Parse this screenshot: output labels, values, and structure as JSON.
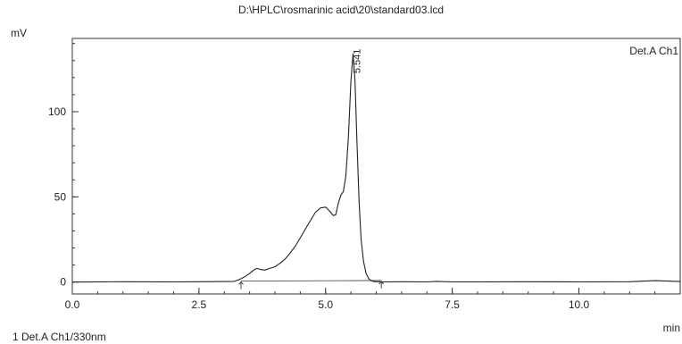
{
  "chart_data": {
    "type": "line",
    "title": "D:\\HPLC\\rosmarinic acid\\20\\standard03.lcd",
    "xlabel": "min",
    "ylabel": "mV",
    "xlim": [
      0.0,
      12.0
    ],
    "ylim": [
      -7,
      143
    ],
    "x_ticks": [
      0.0,
      2.5,
      5.0,
      7.5,
      10.0
    ],
    "x_tick_labels": [
      "0.0",
      "2.5",
      "5.0",
      "7.5",
      "10.0"
    ],
    "y_ticks": [
      0,
      50,
      100
    ],
    "y_tick_labels": [
      "0",
      "50",
      "100"
    ],
    "grid": false,
    "channel_label": "Det.A Ch1",
    "footer_legend": "1  Det.A Ch1/330nm",
    "series": [
      {
        "name": "Det.A Ch1",
        "color": "#222222",
        "x": [
          0.0,
          1.0,
          2.0,
          2.5,
          3.0,
          3.2,
          3.3,
          3.4,
          3.5,
          3.6,
          3.65,
          3.7,
          3.8,
          3.9,
          4.0,
          4.1,
          4.2,
          4.3,
          4.4,
          4.5,
          4.6,
          4.7,
          4.8,
          4.9,
          5.0,
          5.1,
          5.15,
          5.2,
          5.25,
          5.3,
          5.35,
          5.4,
          5.45,
          5.5,
          5.541,
          5.58,
          5.62,
          5.66,
          5.7,
          5.75,
          5.8,
          5.85,
          5.9,
          5.95,
          6.0,
          6.1,
          6.2,
          6.5,
          7.0,
          7.2,
          7.5,
          8.0,
          9.0,
          10.0,
          11.0,
          11.5,
          12.0
        ],
        "y": [
          0,
          0.2,
          0.1,
          0.2,
          0.3,
          0.4,
          1.5,
          3,
          5,
          7.5,
          8,
          7.5,
          7,
          8,
          9,
          11,
          13.5,
          17,
          21,
          26,
          31,
          36,
          41,
          43.5,
          44,
          41,
          39,
          39.5,
          46,
          51,
          53,
          62,
          85,
          118,
          134,
          118,
          82,
          48,
          25,
          12,
          5,
          2,
          0.8,
          0.3,
          0.2,
          0.1,
          0.1,
          0.2,
          0.1,
          0.4,
          0.1,
          0.1,
          0.2,
          0.1,
          0.2,
          0.8,
          0.3
        ]
      }
    ],
    "baseline": {
      "x": [
        3.33,
        6.1
      ],
      "y": [
        0.6,
        0.9
      ]
    },
    "integration_markers": [
      {
        "x": 3.33,
        "y": 0.6
      },
      {
        "x": 6.1,
        "y": 0.9
      }
    ],
    "peak_labels": [
      {
        "x": 5.541,
        "y": 134,
        "text": "5.541"
      }
    ]
  }
}
